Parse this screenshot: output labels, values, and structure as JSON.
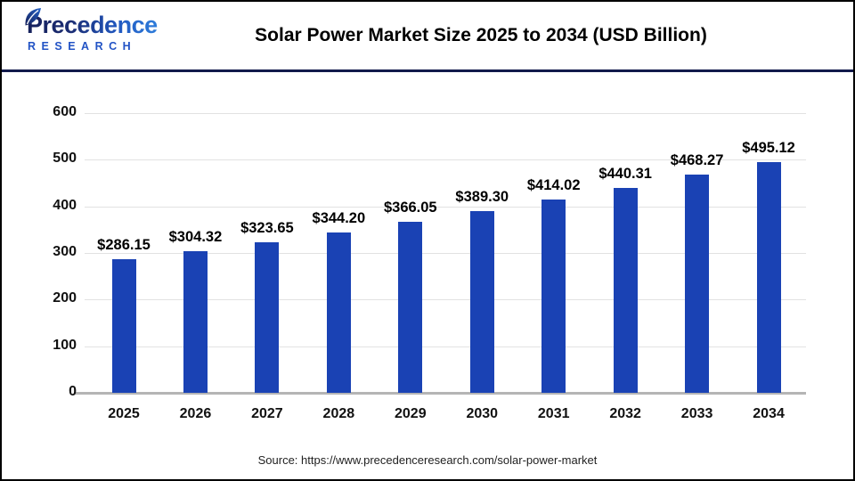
{
  "logo": {
    "name": "Precedence",
    "subname": "RESEARCH",
    "navy": "#1b2a6e",
    "blue": "#2e7ddb",
    "research_blue": "#2253c5"
  },
  "header": {
    "title": "Solar Power Market Size 2025 to 2034 (USD Billion)",
    "rule_color": "#121a4c"
  },
  "footer": {
    "source": "Source: https://www.precedenceresearch.com/solar-power-market"
  },
  "chart_data": {
    "type": "bar",
    "title": "Solar Power Market Size 2025 to 2034 (USD Billion)",
    "unit": "USD Billion",
    "categories": [
      "2025",
      "2026",
      "2027",
      "2028",
      "2029",
      "2030",
      "2031",
      "2032",
      "2033",
      "2034"
    ],
    "values": [
      286.15,
      304.32,
      323.65,
      344.2,
      366.05,
      389.3,
      414.02,
      440.31,
      468.27,
      495.12
    ],
    "value_labels": [
      "$286.15",
      "$304.32",
      "$323.65",
      "$344.20",
      "$366.05",
      "$389.30",
      "$414.02",
      "$440.31",
      "$468.27",
      "$495.12"
    ],
    "xlabel": "",
    "ylabel": "",
    "ylim": [
      0,
      600
    ],
    "yticks": [
      0,
      100,
      200,
      300,
      400,
      500,
      600
    ],
    "grid": true,
    "legend": false,
    "bar_color": "#1a42b4",
    "gridline_color": "#e2e2e2",
    "axis_line_color": "#b5b5b5"
  }
}
